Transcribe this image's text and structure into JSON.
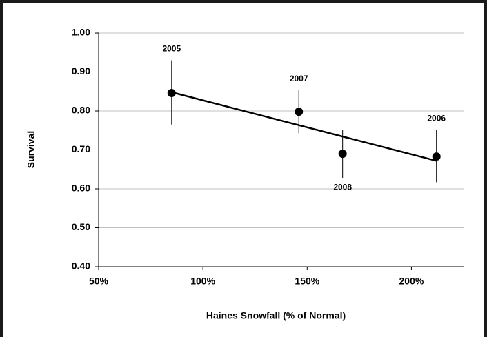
{
  "chart_data": {
    "type": "scatter",
    "x_label": "Haines Snowfall (% of Normal)",
    "y_label": "Survival",
    "x": [
      85,
      212,
      146,
      167
    ],
    "point_labels": [
      "2005",
      "2006",
      "2007",
      "2008"
    ],
    "series": [
      {
        "name": "Survival",
        "color": "#000000",
        "values": [
          0.846,
          0.683,
          0.798,
          0.69
        ],
        "ci_low": [
          0.765,
          0.617,
          0.743,
          0.628
        ],
        "ci_high": [
          0.93,
          0.752,
          0.853,
          0.752
        ]
      }
    ],
    "trendline": {
      "x": [
        85,
        212
      ],
      "values": [
        0.848,
        0.672
      ],
      "color": "#000000"
    },
    "xlim": [
      50,
      225
    ],
    "xticks": [
      {
        "value": 50,
        "label": "50%"
      },
      {
        "value": 100,
        "label": "100%"
      },
      {
        "value": 150,
        "label": "150%"
      },
      {
        "value": 200,
        "label": "200%"
      }
    ],
    "ylim": [
      0.4,
      1.0
    ],
    "yticks": [
      {
        "value": 0.4,
        "label": "0.40"
      },
      {
        "value": 0.5,
        "label": "0.50"
      },
      {
        "value": 0.6,
        "label": "0.60"
      },
      {
        "value": 0.7,
        "label": "0.70"
      },
      {
        "value": 0.8,
        "label": "0.80"
      },
      {
        "value": 0.9,
        "label": "0.90"
      },
      {
        "value": 1.0,
        "label": "1.00"
      }
    ],
    "grid": true
  }
}
